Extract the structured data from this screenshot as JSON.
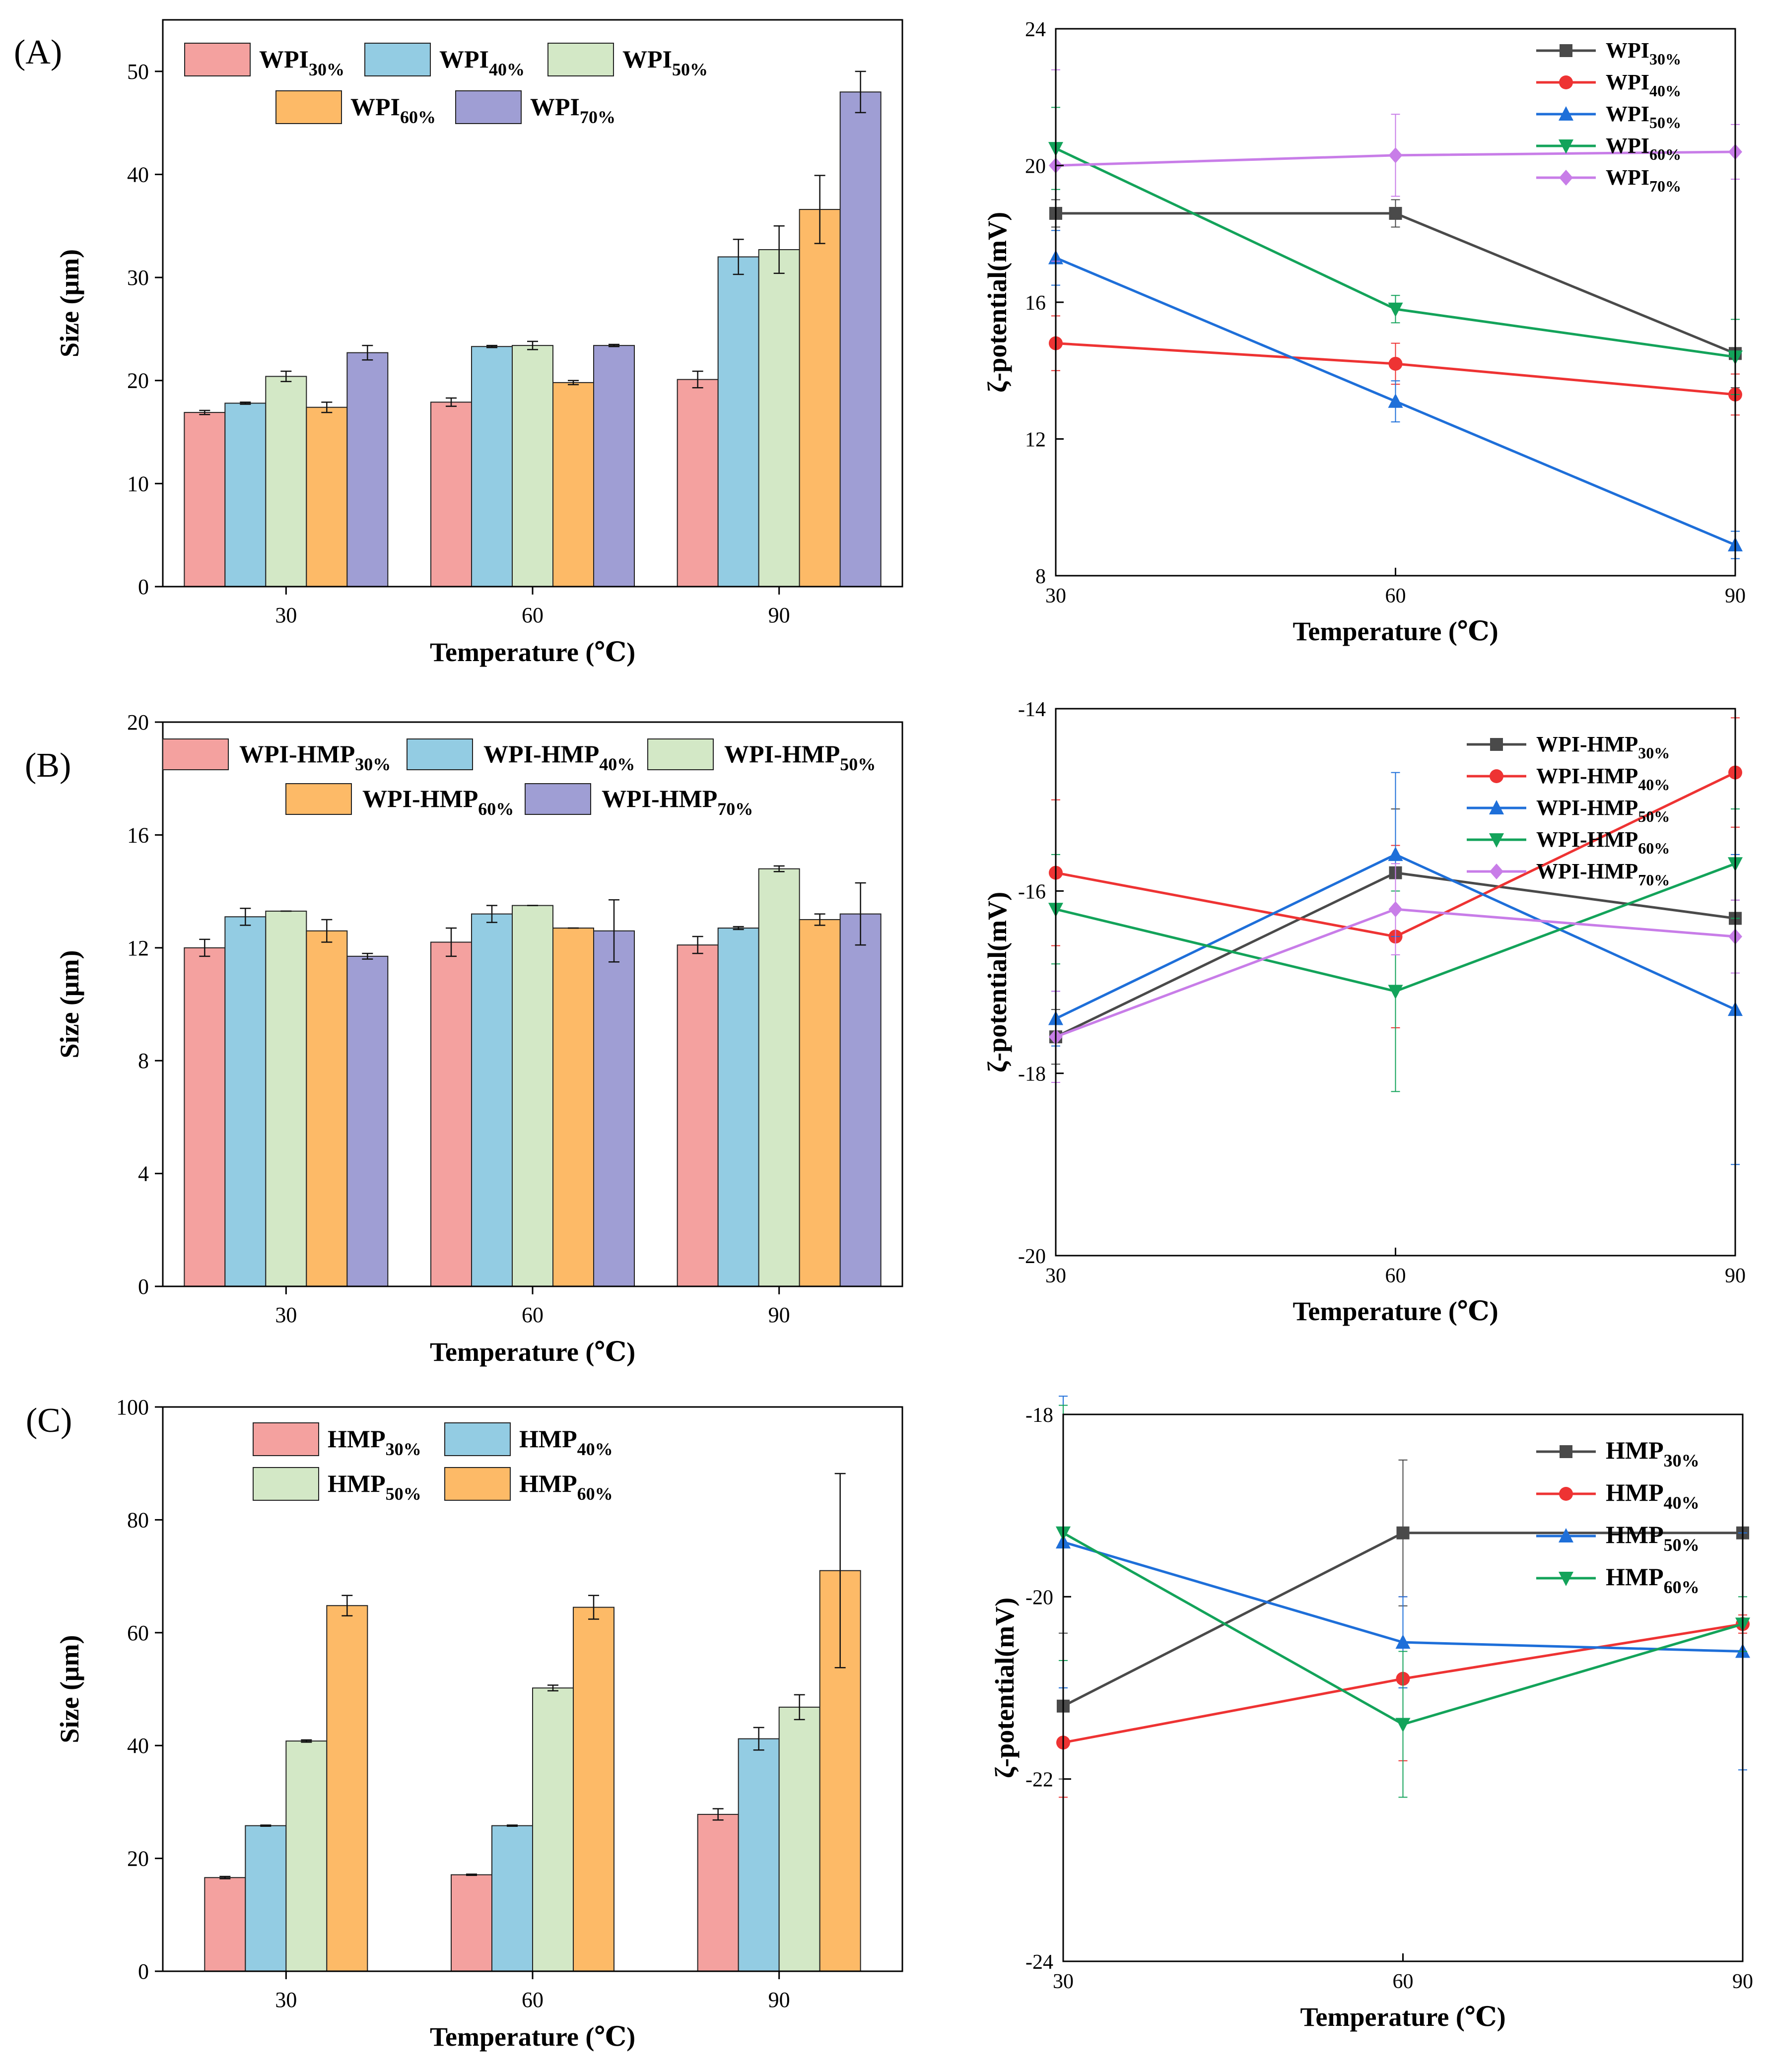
{
  "panel_labels": [
    "(A)",
    "(B)",
    "(C)"
  ],
  "colors": {
    "s30": "#F4A19F",
    "s40": "#93CCE3",
    "s50": "#D3E8C6",
    "s60": "#FDBA67",
    "s70": "#9F9ED4",
    "line30": "#4A4A4A",
    "line40": "#EE3333",
    "line50": "#1E6FD9",
    "line60": "#13A35A",
    "line70": "#C87DE8"
  },
  "chart_data": [
    {
      "id": "A-size",
      "type": "bar",
      "title": "",
      "xlabel": "Temperature (℃)",
      "ylabel": "Size (μm)",
      "categories": [
        "30",
        "60",
        "90"
      ],
      "ylim": [
        0,
        55
      ],
      "yticks": [
        0,
        10,
        20,
        30,
        40,
        50
      ],
      "legend_position": "top-left",
      "series": [
        {
          "name": "WPI",
          "sub": "30%",
          "color_key": "s30",
          "values": [
            16.9,
            17.9,
            20.1
          ],
          "errors": [
            0.2,
            0.4,
            0.8
          ]
        },
        {
          "name": "WPI",
          "sub": "40%",
          "color_key": "s40",
          "values": [
            17.8,
            23.3,
            32.0
          ],
          "errors": [
            0.1,
            0.1,
            1.7
          ]
        },
        {
          "name": "WPI",
          "sub": "50%",
          "color_key": "s50",
          "values": [
            20.4,
            23.4,
            32.7
          ],
          "errors": [
            0.5,
            0.4,
            2.3
          ]
        },
        {
          "name": "WPI",
          "sub": "60%",
          "color_key": "s60",
          "values": [
            17.4,
            19.8,
            36.6
          ],
          "errors": [
            0.5,
            0.2,
            3.3
          ]
        },
        {
          "name": "WPI",
          "sub": "70%",
          "color_key": "s70",
          "values": [
            22.7,
            23.4,
            48.0
          ],
          "errors": [
            0.7,
            0.1,
            2.0
          ]
        }
      ]
    },
    {
      "id": "A-zeta",
      "type": "line",
      "title": "",
      "xlabel": "Temperature (℃)",
      "ylabel": "ζ-potential(mV)",
      "x": [
        30,
        60,
        90
      ],
      "xticks": [
        30,
        60,
        90
      ],
      "ylim": [
        8,
        24
      ],
      "yticks": [
        8,
        12,
        16,
        20,
        24
      ],
      "legend_position": "top-right",
      "series": [
        {
          "name": "WPI",
          "sub": "30%",
          "color_key": "line30",
          "marker": "square",
          "values": [
            18.6,
            18.6,
            14.5
          ],
          "errors": [
            0.4,
            0.4,
            1.0
          ]
        },
        {
          "name": "WPI",
          "sub": "40%",
          "color_key": "line40",
          "marker": "circle",
          "values": [
            14.8,
            14.2,
            13.3
          ],
          "errors": [
            0.8,
            0.6,
            0.6
          ]
        },
        {
          "name": "WPI",
          "sub": "50%",
          "color_key": "line50",
          "marker": "triangle-up",
          "values": [
            17.3,
            13.1,
            8.9
          ],
          "errors": [
            0.8,
            0.6,
            0.4
          ]
        },
        {
          "name": "WPI",
          "sub": "60%",
          "color_key": "line60",
          "marker": "triangle-down",
          "values": [
            20.5,
            15.8,
            14.4
          ],
          "errors": [
            1.2,
            0.4,
            1.1
          ]
        },
        {
          "name": "WPI",
          "sub": "70%",
          "color_key": "line70",
          "marker": "diamond",
          "values": [
            20.0,
            20.3,
            20.4
          ],
          "errors": [
            2.8,
            1.2,
            0.8
          ]
        }
      ]
    },
    {
      "id": "B-size",
      "type": "bar",
      "title": "",
      "xlabel": "Temperature (℃)",
      "ylabel": "Size (μm)",
      "categories": [
        "30",
        "60",
        "90"
      ],
      "ylim": [
        0,
        20
      ],
      "yticks": [
        0,
        4,
        8,
        12,
        16,
        20
      ],
      "legend_position": "top-left",
      "series": [
        {
          "name": "WPI-HMP",
          "sub": "30%",
          "color_key": "s30",
          "values": [
            12.0,
            12.2,
            12.1
          ],
          "errors": [
            0.3,
            0.5,
            0.3
          ]
        },
        {
          "name": "WPI-HMP",
          "sub": "40%",
          "color_key": "s40",
          "values": [
            13.1,
            13.2,
            12.7
          ],
          "errors": [
            0.3,
            0.3,
            0.05
          ]
        },
        {
          "name": "WPI-HMP",
          "sub": "50%",
          "color_key": "s50",
          "values": [
            13.3,
            13.5,
            14.8
          ],
          "errors": [
            0.0,
            0.0,
            0.1
          ]
        },
        {
          "name": "WPI-HMP",
          "sub": "60%",
          "color_key": "s60",
          "values": [
            12.6,
            12.7,
            13.0
          ],
          "errors": [
            0.4,
            0.0,
            0.2
          ]
        },
        {
          "name": "WPI-HMP",
          "sub": "70%",
          "color_key": "s70",
          "values": [
            11.7,
            12.6,
            13.2
          ],
          "errors": [
            0.1,
            1.1,
            1.1
          ]
        }
      ]
    },
    {
      "id": "B-zeta",
      "type": "line",
      "title": "",
      "xlabel": "Temperature (℃)",
      "ylabel": "ζ-potential(mV)",
      "x": [
        30,
        60,
        90
      ],
      "xticks": [
        30,
        60,
        90
      ],
      "ylim": [
        -20,
        -14
      ],
      "yticks": [
        -20,
        -18,
        -16,
        -14
      ],
      "legend_position": "top-right",
      "series": [
        {
          "name": "WPI-HMP",
          "sub": "30%",
          "color_key": "line30",
          "marker": "square",
          "values": [
            -17.6,
            -15.8,
            -16.3
          ],
          "errors": [
            0.3,
            0.7,
            0.2
          ]
        },
        {
          "name": "WPI-HMP",
          "sub": "40%",
          "color_key": "line40",
          "marker": "circle",
          "values": [
            -15.8,
            -16.5,
            -14.7
          ],
          "errors": [
            0.8,
            1.0,
            0.6
          ]
        },
        {
          "name": "WPI-HMP",
          "sub": "50%",
          "color_key": "line50",
          "marker": "triangle-up",
          "values": [
            -17.4,
            -15.6,
            -17.3
          ],
          "errors": [
            0.3,
            0.9,
            1.7
          ]
        },
        {
          "name": "WPI-HMP",
          "sub": "60%",
          "color_key": "line60",
          "marker": "triangle-down",
          "values": [
            -16.2,
            -17.1,
            -15.7
          ],
          "errors": [
            0.6,
            1.1,
            0.6
          ]
        },
        {
          "name": "WPI-HMP",
          "sub": "70%",
          "color_key": "line70",
          "marker": "diamond",
          "values": [
            -17.6,
            -16.2,
            -16.5
          ],
          "errors": [
            0.5,
            0.5,
            0.4
          ]
        }
      ]
    },
    {
      "id": "C-size",
      "type": "bar",
      "title": "",
      "xlabel": "Temperature (℃)",
      "ylabel": "Size (μm)",
      "categories": [
        "30",
        "60",
        "90"
      ],
      "ylim": [
        0,
        100
      ],
      "yticks": [
        0,
        20,
        40,
        60,
        80,
        100
      ],
      "legend_position": "top-left",
      "series": [
        {
          "name": "HMP",
          "sub": "30%",
          "color_key": "s30",
          "values": [
            16.6,
            17.1,
            27.8
          ],
          "errors": [
            0.2,
            0.1,
            1.0
          ]
        },
        {
          "name": "HMP",
          "sub": "40%",
          "color_key": "s40",
          "values": [
            25.8,
            25.8,
            41.2
          ],
          "errors": [
            0.1,
            0.1,
            2.0
          ]
        },
        {
          "name": "HMP",
          "sub": "50%",
          "color_key": "s50",
          "values": [
            40.8,
            50.2,
            46.8
          ],
          "errors": [
            0.2,
            0.5,
            2.2
          ]
        },
        {
          "name": "HMP",
          "sub": "60%",
          "color_key": "s60",
          "values": [
            64.8,
            64.5,
            71.0
          ],
          "errors": [
            1.8,
            2.1,
            17.2
          ]
        }
      ]
    },
    {
      "id": "C-zeta",
      "type": "line",
      "title": "",
      "xlabel": "Temperature (℃)",
      "ylabel": "ζ-potential(mV)",
      "x": [
        30,
        60,
        90
      ],
      "xticks": [
        30,
        60,
        90
      ],
      "ylim": [
        -24,
        -18
      ],
      "yticks": [
        -24,
        -22,
        -20,
        -18
      ],
      "legend_position": "top-right",
      "series": [
        {
          "name": "HMP",
          "sub": "30%",
          "color_key": "line30",
          "marker": "square",
          "values": [
            -21.2,
            -19.3,
            -19.3
          ],
          "errors": [
            0.8,
            0.8,
            0.0
          ]
        },
        {
          "name": "HMP",
          "sub": "40%",
          "color_key": "line40",
          "marker": "circle",
          "values": [
            -21.6,
            -20.9,
            -20.3
          ],
          "errors": [
            0.6,
            0.9,
            0.1
          ]
        },
        {
          "name": "HMP",
          "sub": "50%",
          "color_key": "line50",
          "marker": "triangle-up",
          "values": [
            -19.4,
            -20.5,
            -20.6
          ],
          "errors": [
            1.6,
            0.5,
            1.3
          ]
        },
        {
          "name": "HMP",
          "sub": "60%",
          "color_key": "line60",
          "marker": "triangle-down",
          "values": [
            -19.3,
            -21.4,
            -20.3
          ],
          "errors": [
            1.4,
            0.8,
            0.3
          ]
        }
      ]
    }
  ]
}
